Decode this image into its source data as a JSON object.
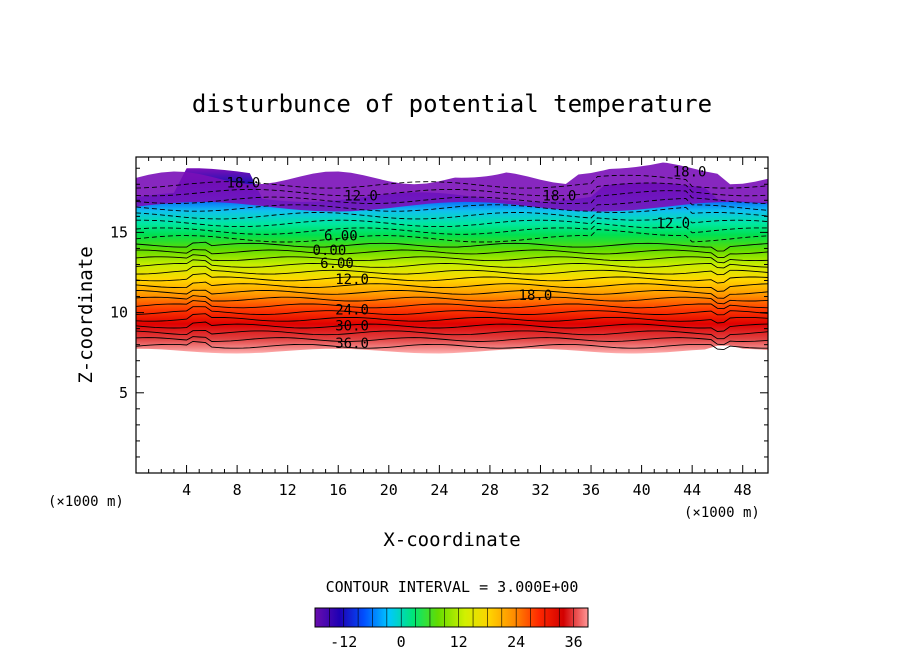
{
  "chart_data": {
    "type": "heatmap",
    "title": "disturbunce of potential temperature",
    "xlabel": "X-coordinate",
    "ylabel": "Z-coordinate",
    "x_unit_label_left": "(×1000 m)",
    "x_unit_label_right": "(×1000 m)",
    "xlim": [
      0,
      50
    ],
    "ylim": [
      0,
      19.7
    ],
    "x_ticks": [
      4,
      8,
      12,
      16,
      20,
      24,
      28,
      32,
      36,
      40,
      44,
      48
    ],
    "x_tick_labels": [
      "4",
      "8",
      "12",
      "16",
      "20",
      "24",
      "28",
      "32",
      "36",
      "40",
      "44",
      "48"
    ],
    "y_ticks": [
      5,
      10,
      15
    ],
    "y_tick_labels": [
      "5",
      "10",
      "15"
    ],
    "contour_interval_text": "CONTOUR INTERVAL = 3.000E+00",
    "contour_interval": 3.0,
    "contour_labels": [
      {
        "text": "18.0",
        "x": 8.5,
        "z": 18.1
      },
      {
        "text": "12.0",
        "x": 17.8,
        "z": 17.3
      },
      {
        "text": "18.0",
        "x": 33.5,
        "z": 17.3
      },
      {
        "text": "18.0",
        "x": 43.8,
        "z": 18.8
      },
      {
        "text": "12.0",
        "x": 42.5,
        "z": 15.6
      },
      {
        "text": "6.00",
        "x": 16.2,
        "z": 14.8
      },
      {
        "text": "0.00",
        "x": 15.3,
        "z": 13.9
      },
      {
        "text": "6.00",
        "x": 15.9,
        "z": 13.1
      },
      {
        "text": "12.0",
        "x": 17.1,
        "z": 12.1
      },
      {
        "text": "18.0",
        "x": 31.6,
        "z": 11.1
      },
      {
        "text": "24.0",
        "x": 17.1,
        "z": 10.2
      },
      {
        "text": "30.0",
        "x": 17.1,
        "z": 9.2
      },
      {
        "text": "36.0",
        "x": 17.1,
        "z": 8.1
      }
    ],
    "colorbar": {
      "min": -18,
      "max": 39,
      "ticks": [
        -12,
        0,
        12,
        24,
        36
      ],
      "tick_labels": [
        "-12",
        "0",
        "12",
        "24",
        "36"
      ],
      "colors": [
        "#6a0dad",
        "#1e00b4",
        "#0050ff",
        "#00c8ff",
        "#00e676",
        "#64dc00",
        "#d2f000",
        "#ffd200",
        "#ff8c00",
        "#ff2800",
        "#d20000",
        "#ff9696"
      ]
    },
    "field_description": {
      "shaded_top_z": 17.2,
      "shaded_bottom_z": 7.6,
      "color_ramp_colors": [
        "#6a0dad",
        "#1e00b4",
        "#0050ff",
        "#00c8ff",
        "#00e676",
        "#64dc00",
        "#d2f000",
        "#ffd200",
        "#ff8c00",
        "#ff2800",
        "#d20000",
        "#ff9696"
      ]
    }
  }
}
